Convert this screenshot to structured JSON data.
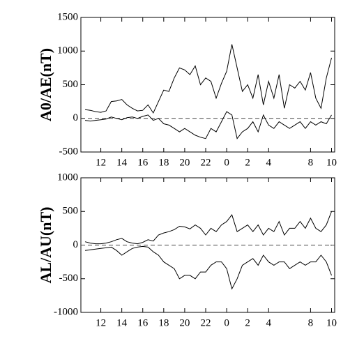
{
  "chart_data": [
    {
      "type": "line",
      "ylabel": "A0/AE(nT)",
      "x": [
        10.5,
        11,
        11.5,
        12,
        12.5,
        13,
        13.5,
        14,
        14.5,
        15,
        15.5,
        16,
        16.5,
        17,
        17.5,
        18,
        18.5,
        19,
        19.5,
        20,
        20.5,
        21,
        21.5,
        22,
        22.5,
        23,
        23.5,
        24,
        24.5,
        25,
        25.5,
        26,
        26.5,
        27,
        27.5,
        28,
        28.5,
        29,
        29.5,
        30,
        30.5,
        31,
        31.5,
        32,
        32.5,
        33,
        33.5,
        34
      ],
      "series": [
        {
          "color": "#000000",
          "values": [
            130,
            120,
            100,
            90,
            110,
            250,
            260,
            280,
            200,
            150,
            110,
            120,
            200,
            80,
            250,
            420,
            400,
            600,
            750,
            720,
            650,
            780,
            500,
            600,
            550,
            300,
            520,
            700,
            1100,
            750,
            400,
            500,
            300,
            650,
            200,
            550,
            300,
            650,
            150,
            500,
            450,
            550,
            420,
            680,
            300,
            150,
            600,
            900
          ]
        },
        {
          "color": "#000000",
          "values": [
            -30,
            -40,
            -30,
            -20,
            -10,
            20,
            0,
            -20,
            10,
            20,
            0,
            30,
            50,
            -30,
            0,
            -80,
            -100,
            -150,
            -200,
            -150,
            -200,
            -250,
            -280,
            -300,
            -150,
            -200,
            -50,
            100,
            50,
            -300,
            -200,
            -150,
            -50,
            -200,
            50,
            -100,
            -150,
            -50,
            -100,
            -150,
            -100,
            -50,
            -150,
            -50,
            -100,
            -50,
            -80,
            50
          ]
        }
      ],
      "hline": 0,
      "xlim": [
        10.1,
        34.3
      ],
      "ylim": [
        -500,
        1500
      ],
      "yticks": [
        -500,
        0,
        500,
        1000,
        1500
      ],
      "xticks": [
        12,
        14,
        16,
        18,
        20,
        22,
        {
          "value": 24,
          "label": "0"
        },
        {
          "value": 26,
          "label": "2"
        },
        {
          "value": 28,
          "label": "4"
        },
        {
          "value": 32,
          "label": "8"
        },
        {
          "value": 34,
          "label": "10"
        }
      ]
    },
    {
      "type": "line",
      "ylabel": "AL/AU(nT)",
      "x": [
        10.5,
        11,
        11.5,
        12,
        12.5,
        13,
        13.5,
        14,
        14.5,
        15,
        15.5,
        16,
        16.5,
        17,
        17.5,
        18,
        18.5,
        19,
        19.5,
        20,
        20.5,
        21,
        21.5,
        22,
        22.5,
        23,
        23.5,
        24,
        24.5,
        25,
        25.5,
        26,
        26.5,
        27,
        27.5,
        28,
        28.5,
        29,
        29.5,
        30,
        30.5,
        31,
        31.5,
        32,
        32.5,
        33,
        33.5,
        34
      ],
      "series": [
        {
          "color": "#000000",
          "values": [
            50,
            30,
            20,
            20,
            30,
            50,
            80,
            100,
            50,
            30,
            20,
            40,
            80,
            60,
            150,
            180,
            200,
            230,
            280,
            270,
            240,
            300,
            250,
            150,
            250,
            200,
            300,
            350,
            450,
            200,
            250,
            300,
            200,
            300,
            150,
            250,
            200,
            350,
            150,
            250,
            250,
            350,
            250,
            400,
            250,
            200,
            300,
            500
          ]
        },
        {
          "color": "#000000",
          "values": [
            -80,
            -70,
            -60,
            -50,
            -40,
            -30,
            -80,
            -150,
            -100,
            -50,
            -30,
            -20,
            -30,
            -100,
            -150,
            -250,
            -300,
            -350,
            -500,
            -450,
            -450,
            -500,
            -400,
            -400,
            -300,
            -250,
            -250,
            -350,
            -650,
            -500,
            -300,
            -250,
            -200,
            -300,
            -150,
            -250,
            -300,
            -250,
            -250,
            -350,
            -300,
            -250,
            -300,
            -250,
            -250,
            -150,
            -250,
            -450
          ]
        }
      ],
      "hline": 0,
      "xlim": [
        10.1,
        34.3
      ],
      "ylim": [
        -1000,
        1000
      ],
      "yticks": [
        -1000,
        -500,
        0,
        500,
        1000
      ],
      "xticks": [
        12,
        14,
        16,
        18,
        20,
        22,
        {
          "value": 24,
          "label": "0"
        },
        {
          "value": 26,
          "label": "2"
        },
        {
          "value": 28,
          "label": "4"
        },
        {
          "value": 32,
          "label": "8"
        },
        {
          "value": 34,
          "label": "10"
        }
      ]
    }
  ]
}
